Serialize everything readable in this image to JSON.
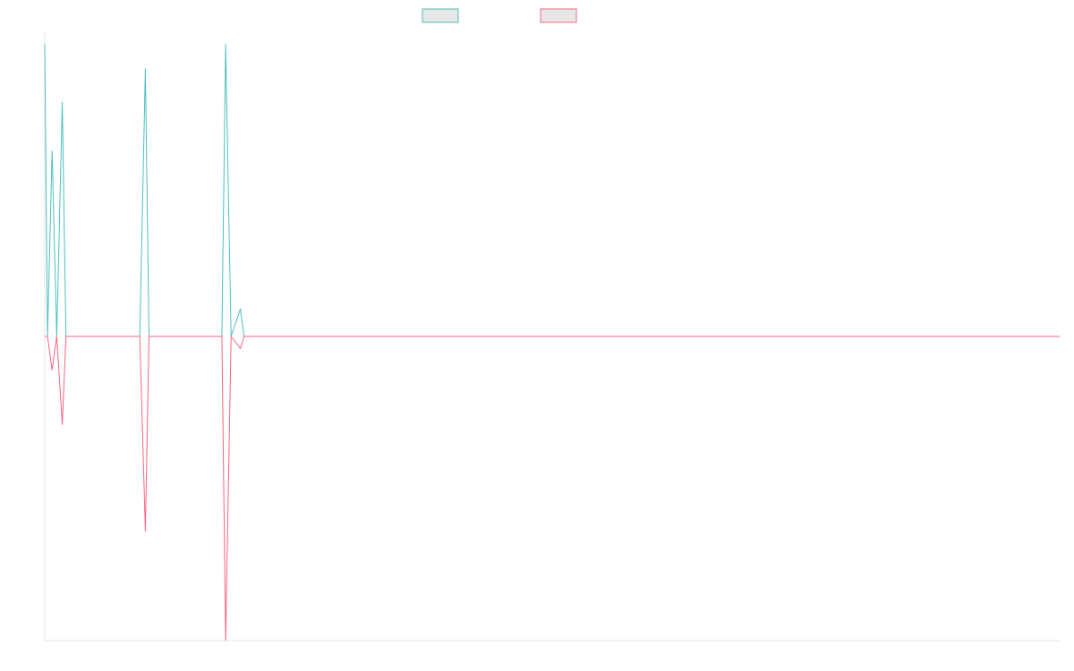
{
  "chart_data": {
    "type": "line",
    "title": "",
    "xlabel": "",
    "ylabel": "",
    "x_ticks_shown": false,
    "y_ticks_shown": false,
    "grid": false,
    "legend_position": "top-center",
    "ylim": [
      -1,
      1
    ],
    "point_count": 110,
    "series": [
      {
        "color": "#4bc0c0",
        "points": [
          [
            0,
            0.96
          ],
          [
            0.3,
            0.0
          ],
          [
            0.8,
            0.61
          ],
          [
            1.3,
            0.0
          ],
          [
            1.9,
            0.77
          ],
          [
            2.3,
            0.0
          ],
          [
            9.8,
            0.0
          ],
          [
            10.3,
            0.0
          ],
          [
            10.9,
            0.88
          ],
          [
            11.3,
            0.0
          ],
          [
            19.2,
            0.0
          ],
          [
            19.6,
            0.96
          ],
          [
            20.2,
            0.0
          ],
          [
            21.2,
            0.09
          ],
          [
            21.6,
            0.0
          ],
          [
            110,
            0.0
          ]
        ]
      },
      {
        "color": "#ff6384",
        "points": [
          [
            0,
            0.0
          ],
          [
            0.3,
            0.0
          ],
          [
            0.8,
            -0.11
          ],
          [
            1.3,
            0.0
          ],
          [
            1.9,
            -0.29
          ],
          [
            2.3,
            0.0
          ],
          [
            9.8,
            0.0
          ],
          [
            10.3,
            0.0
          ],
          [
            10.9,
            -0.64
          ],
          [
            11.3,
            0.0
          ],
          [
            19.2,
            0.0
          ],
          [
            19.6,
            -1.0
          ],
          [
            20.2,
            0.0
          ],
          [
            21.2,
            -0.04
          ],
          [
            21.6,
            0.0
          ],
          [
            110,
            0.0
          ]
        ]
      }
    ]
  }
}
